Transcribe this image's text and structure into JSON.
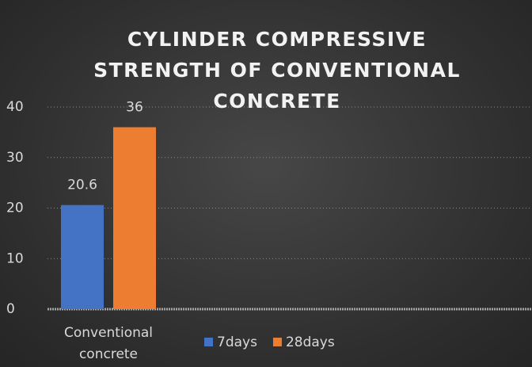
{
  "chart_data": {
    "type": "bar",
    "title": "CYLINDER COMPRESSIVE STRENGTH OF CONVENTIONAL CONCRETE",
    "categories": [
      "Conventional concrete"
    ],
    "series": [
      {
        "name": "7days",
        "color": "#4472c4",
        "values": [
          20.6
        ]
      },
      {
        "name": "28days",
        "color": "#ed7d31",
        "values": [
          36
        ]
      }
    ],
    "ylim": [
      0,
      40
    ],
    "yticks": [
      0,
      10,
      20,
      30,
      40
    ],
    "grid": true,
    "legend": "bottom"
  }
}
